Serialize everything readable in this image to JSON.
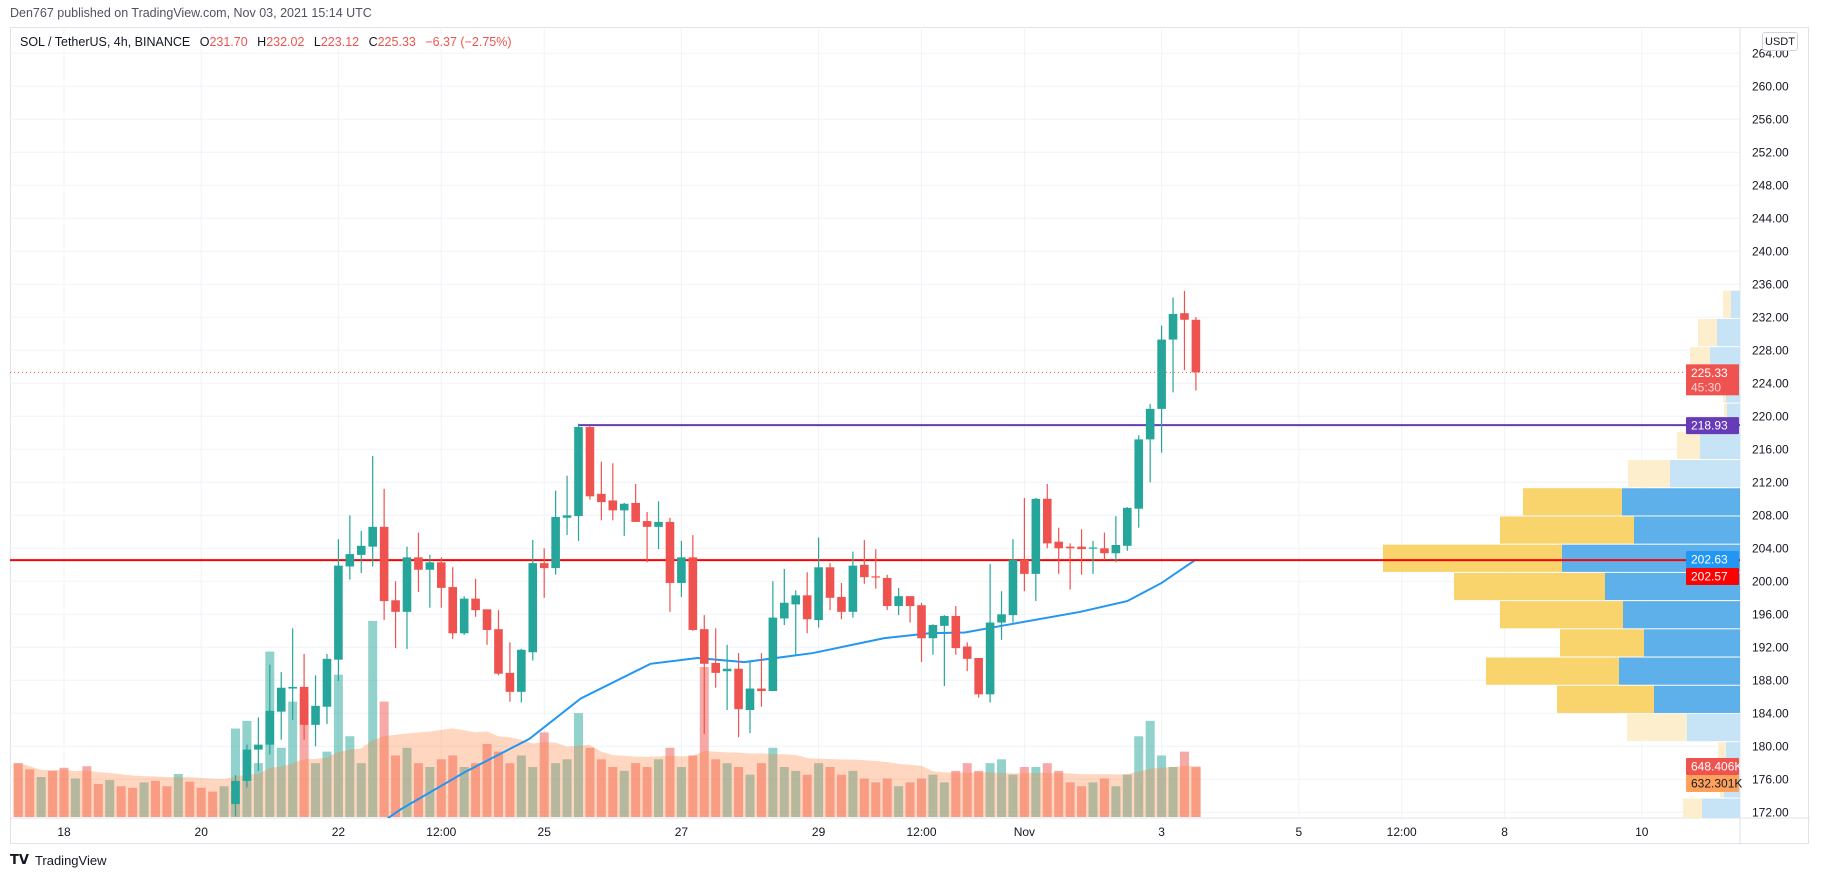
{
  "header": {
    "published": "Den767 published on TradingView.com, Nov 03, 2021 15:14 UTC"
  },
  "legend": {
    "symbol": "SOL / TetherUS, 4h, BINANCE",
    "o_label": "O",
    "o": "231.70",
    "h_label": "H",
    "h": "232.02",
    "l_label": "L",
    "l": "223.12",
    "c_label": "C",
    "c": "225.33",
    "change": "−6.37 (−2.75%)"
  },
  "currency_button": "USDT",
  "logo": {
    "icon": "tradingview-logo-icon",
    "text": "TradingView"
  },
  "badges": {
    "last_price": "225.33",
    "countdown": "45:30",
    "resistance": "218.93",
    "ema": "202.63",
    "support": "202.57",
    "volume": "648.406K",
    "volume_ma": "632.301K"
  },
  "colors": {
    "up": "#26a69a",
    "down": "#ef5350",
    "ema": "#2196f3",
    "resistance_line": "#673ab7",
    "support_line": "#ff0000",
    "volume_ma_badge": "#ffa15a",
    "profile_up": "#5eb0ea",
    "profile_down": "#f9d36b",
    "profile_up_light": "#c7e3f6",
    "profile_down_light": "#fdefcd"
  },
  "chart_data": {
    "type": "candlestick",
    "title": "SOL / TetherUS, 4h, BINANCE",
    "ylim": [
      172,
      264
    ],
    "price_ticks": [
      "172.00",
      "176.00",
      "180.00",
      "184.00",
      "188.00",
      "192.00",
      "196.00",
      "200.00",
      "204.00",
      "208.00",
      "212.00",
      "216.00",
      "220.00",
      "224.00",
      "228.00",
      "232.00",
      "236.00",
      "240.00",
      "244.00",
      "248.00",
      "252.00",
      "256.00",
      "260.00",
      "264.00"
    ],
    "time_ticks": [
      {
        "label": "18",
        "day": 0
      },
      {
        "label": "20",
        "day": 2
      },
      {
        "label": "22",
        "day": 4
      },
      {
        "label": "12:00",
        "day": 5.5
      },
      {
        "label": "25",
        "day": 7
      },
      {
        "label": "27",
        "day": 9
      },
      {
        "label": "29",
        "day": 11
      },
      {
        "label": "12:00",
        "day": 12.5
      },
      {
        "label": "Nov",
        "day": 14
      },
      {
        "label": "3",
        "day": 16
      },
      {
        "label": "5",
        "day": 18
      },
      {
        "label": "12:00",
        "day": 19.5
      },
      {
        "label": "8",
        "day": 21
      },
      {
        "label": "10",
        "day": 23
      }
    ],
    "time_origin": "2021-10-18 00:00 UTC",
    "interval_hours": 4,
    "first_candle_index": -3,
    "first_candle_day": 3,
    "candles_ohlc": [
      [
        173,
        176.5,
        171.5,
        175.8
      ],
      [
        175.8,
        180.2,
        175,
        179.6
      ],
      [
        179.6,
        183.5,
        177,
        180.2
      ],
      [
        180.2,
        189.9,
        179,
        184.3
      ],
      [
        184.2,
        189.0,
        180.8,
        187.1
      ],
      [
        187.0,
        194.3,
        183.2,
        187.2
      ],
      [
        187.2,
        191.2,
        180.8,
        182.6
      ],
      [
        182.6,
        188.6,
        180.0,
        184.9
      ],
      [
        184.8,
        191.2,
        182.7,
        190.6
      ],
      [
        190.5,
        205.1,
        187.9,
        201.9
      ],
      [
        201.8,
        208.0,
        200.2,
        203.3
      ],
      [
        203.2,
        206.1,
        201.0,
        204.3
      ],
      [
        204.2,
        215.2,
        201.8,
        206.6
      ],
      [
        206.6,
        211.2,
        195.3,
        197.6
      ],
      [
        197.7,
        200.0,
        191.9,
        196.3
      ],
      [
        196.3,
        204.2,
        191.8,
        202.9
      ],
      [
        202.9,
        205.9,
        198.7,
        201.4
      ],
      [
        201.4,
        203.2,
        196.8,
        202.3
      ],
      [
        202.3,
        202.9,
        196.8,
        199.2
      ],
      [
        199.3,
        201.7,
        193.0,
        193.7
      ],
      [
        193.7,
        198.2,
        193.5,
        197.9
      ],
      [
        197.9,
        200.3,
        195.7,
        196.5
      ],
      [
        196.6,
        196.6,
        192.3,
        194.1
      ],
      [
        194.2,
        196.5,
        188.6,
        188.8
      ],
      [
        188.9,
        192.6,
        185.4,
        186.6
      ],
      [
        186.6,
        191.8,
        185.3,
        191.7
      ],
      [
        191.4,
        205.0,
        190.4,
        202.2
      ],
      [
        202.2,
        204.0,
        198.0,
        201.6
      ],
      [
        201.6,
        211.0,
        200.8,
        207.8
      ],
      [
        207.7,
        212.8,
        205.6,
        208.0
      ],
      [
        207.9,
        219.1,
        204.9,
        218.7
      ],
      [
        218.7,
        218.8,
        209.9,
        210.3
      ],
      [
        210.6,
        214.5,
        207.4,
        209.6
      ],
      [
        209.8,
        214.3,
        207.4,
        208.6
      ],
      [
        208.6,
        209.5,
        205.5,
        209.4
      ],
      [
        209.5,
        211.8,
        207.2,
        207.2
      ],
      [
        207.3,
        208.4,
        202.3,
        206.6
      ],
      [
        206.6,
        209.7,
        203.9,
        207.2
      ],
      [
        207.2,
        207.7,
        196.3,
        199.8
      ],
      [
        199.8,
        204.9,
        198.1,
        202.9
      ],
      [
        202.9,
        205.6,
        194.0,
        194.1
      ],
      [
        194.2,
        195.9,
        181.5,
        190.0
      ],
      [
        190.1,
        194.3,
        187.1,
        188.9
      ],
      [
        189.1,
        192.3,
        184.4,
        189.4
      ],
      [
        189.4,
        191.3,
        181.1,
        184.5
      ],
      [
        184.4,
        190.3,
        181.6,
        187.0
      ],
      [
        187.0,
        191.3,
        184.8,
        186.7
      ],
      [
        186.7,
        200.0,
        186.7,
        195.6
      ],
      [
        195.5,
        201.5,
        194.7,
        197.4
      ],
      [
        197.2,
        198.9,
        191.1,
        198.3
      ],
      [
        198.3,
        201.1,
        193.7,
        195.4
      ],
      [
        195.3,
        205.3,
        194.4,
        201.7
      ],
      [
        201.7,
        202.2,
        196.5,
        198.0
      ],
      [
        198.1,
        199.8,
        195.4,
        196.3
      ],
      [
        196.3,
        203.6,
        195.6,
        201.9
      ],
      [
        202.0,
        205.0,
        199.7,
        200.5
      ],
      [
        200.6,
        203.9,
        199.1,
        200.5
      ],
      [
        200.4,
        200.8,
        196.5,
        197.0
      ],
      [
        197.0,
        199.2,
        195.9,
        198.2
      ],
      [
        198.2,
        198.2,
        195.0,
        197.0
      ],
      [
        197.1,
        197.4,
        190.2,
        193.1
      ],
      [
        193.1,
        194.8,
        191.1,
        194.7
      ],
      [
        194.6,
        195.9,
        187.3,
        195.8
      ],
      [
        195.8,
        197.0,
        191.1,
        191.9
      ],
      [
        192.1,
        192.6,
        189.1,
        190.6
      ],
      [
        190.7,
        190.7,
        185.9,
        186.3
      ],
      [
        186.3,
        202.1,
        185.3,
        195.0
      ],
      [
        195.0,
        198.8,
        192.9,
        196.0
      ],
      [
        195.9,
        205.1,
        195.0,
        202.6
      ],
      [
        202.6,
        210.1,
        198.8,
        200.9
      ],
      [
        200.9,
        210.1,
        197.6,
        210.0
      ],
      [
        210.0,
        211.8,
        204.0,
        204.6
      ],
      [
        204.8,
        206.5,
        200.9,
        204.0
      ],
      [
        204.2,
        204.6,
        199.0,
        204.0
      ],
      [
        204.2,
        206.3,
        200.8,
        203.9
      ],
      [
        204.0,
        204.9,
        200.9,
        204.1
      ],
      [
        204.0,
        205.9,
        202.6,
        203.4
      ],
      [
        203.4,
        207.9,
        202.3,
        204.4
      ],
      [
        204.3,
        209.0,
        203.7,
        208.9
      ],
      [
        208.8,
        217.7,
        206.5,
        217.2
      ],
      [
        217.2,
        221.5,
        212.0,
        220.9
      ],
      [
        220.9,
        231.0,
        215.6,
        229.3
      ],
      [
        229.3,
        234.4,
        222.9,
        232.4
      ],
      [
        232.5,
        235.2,
        225.6,
        231.7
      ],
      [
        231.7,
        232.02,
        223.12,
        225.33
      ]
    ],
    "volumes_k": [
      1150,
      1250,
      700,
      2150,
      900,
      1500,
      1600,
      700,
      850,
      1850,
      1050,
      700,
      2550,
      1500,
      800,
      900,
      700,
      650,
      750,
      800,
      650,
      700,
      950,
      850,
      700,
      800,
      650,
      1100,
      700,
      750,
      1350,
      900,
      750,
      650,
      600,
      700,
      650,
      750,
      900,
      650,
      800,
      1950,
      750,
      700,
      650,
      550,
      700,
      900,
      650,
      600,
      550,
      700,
      650,
      550,
      600,
      500,
      450,
      500,
      400,
      450,
      500,
      550,
      450,
      600,
      700,
      600,
      700,
      750,
      550,
      650,
      650,
      700,
      600,
      450,
      400,
      450,
      500,
      400,
      550,
      1050,
      1250,
      800,
      650,
      850,
      648.406
    ],
    "early_volumes_k": [
      700,
      620,
      520,
      600,
      640,
      500,
      660,
      430,
      480,
      400,
      380,
      450,
      470,
      400,
      560,
      460,
      380,
      330,
      400
    ],
    "early_volume_dir": "ddudduddudduddudddu",
    "volume_ma_period": 20,
    "ema": [
      [
        9.5,
        170.5
      ],
      [
        11.5,
        172.4
      ],
      [
        17.1,
        176.9
      ],
      [
        22.7,
        180.9
      ],
      [
        27.2,
        185.8
      ],
      [
        33.3,
        190.0
      ],
      [
        37.4,
        190.7
      ],
      [
        41.5,
        190.2
      ],
      [
        47.5,
        191.3
      ],
      [
        53.7,
        193.1
      ],
      [
        57.7,
        193.7
      ],
      [
        60.8,
        193.8
      ],
      [
        64.8,
        194.8
      ],
      [
        70.9,
        196.3
      ],
      [
        75,
        197.6
      ],
      [
        78,
        199.8
      ],
      [
        81,
        202.63
      ]
    ],
    "hlines": [
      {
        "name": "resistance",
        "price": 218.93,
        "from_index": 27
      },
      {
        "name": "support",
        "price": 202.57,
        "from_index": null
      }
    ],
    "last_price": 225.33,
    "volume_profile": {
      "top_price": 235.22,
      "row_size": 3.42,
      "value_area_rows": [
        7,
        14
      ],
      "rows_up_down": [
        [
          9,
          8
        ],
        [
          23,
          19
        ],
        [
          30,
          20
        ],
        [
          14,
          3
        ],
        [
          13,
          3
        ],
        [
          40,
          23
        ],
        [
          70,
          42
        ],
        [
          118,
          99
        ],
        [
          106,
          134
        ],
        [
          178,
          179
        ],
        [
          135,
          151
        ],
        [
          117,
          123
        ],
        [
          96,
          84
        ],
        [
          121,
          133
        ],
        [
          86,
          97
        ],
        [
          53,
          60
        ],
        [
          14,
          8
        ],
        [
          16,
          4
        ],
        [
          38,
          19
        ]
      ]
    }
  }
}
